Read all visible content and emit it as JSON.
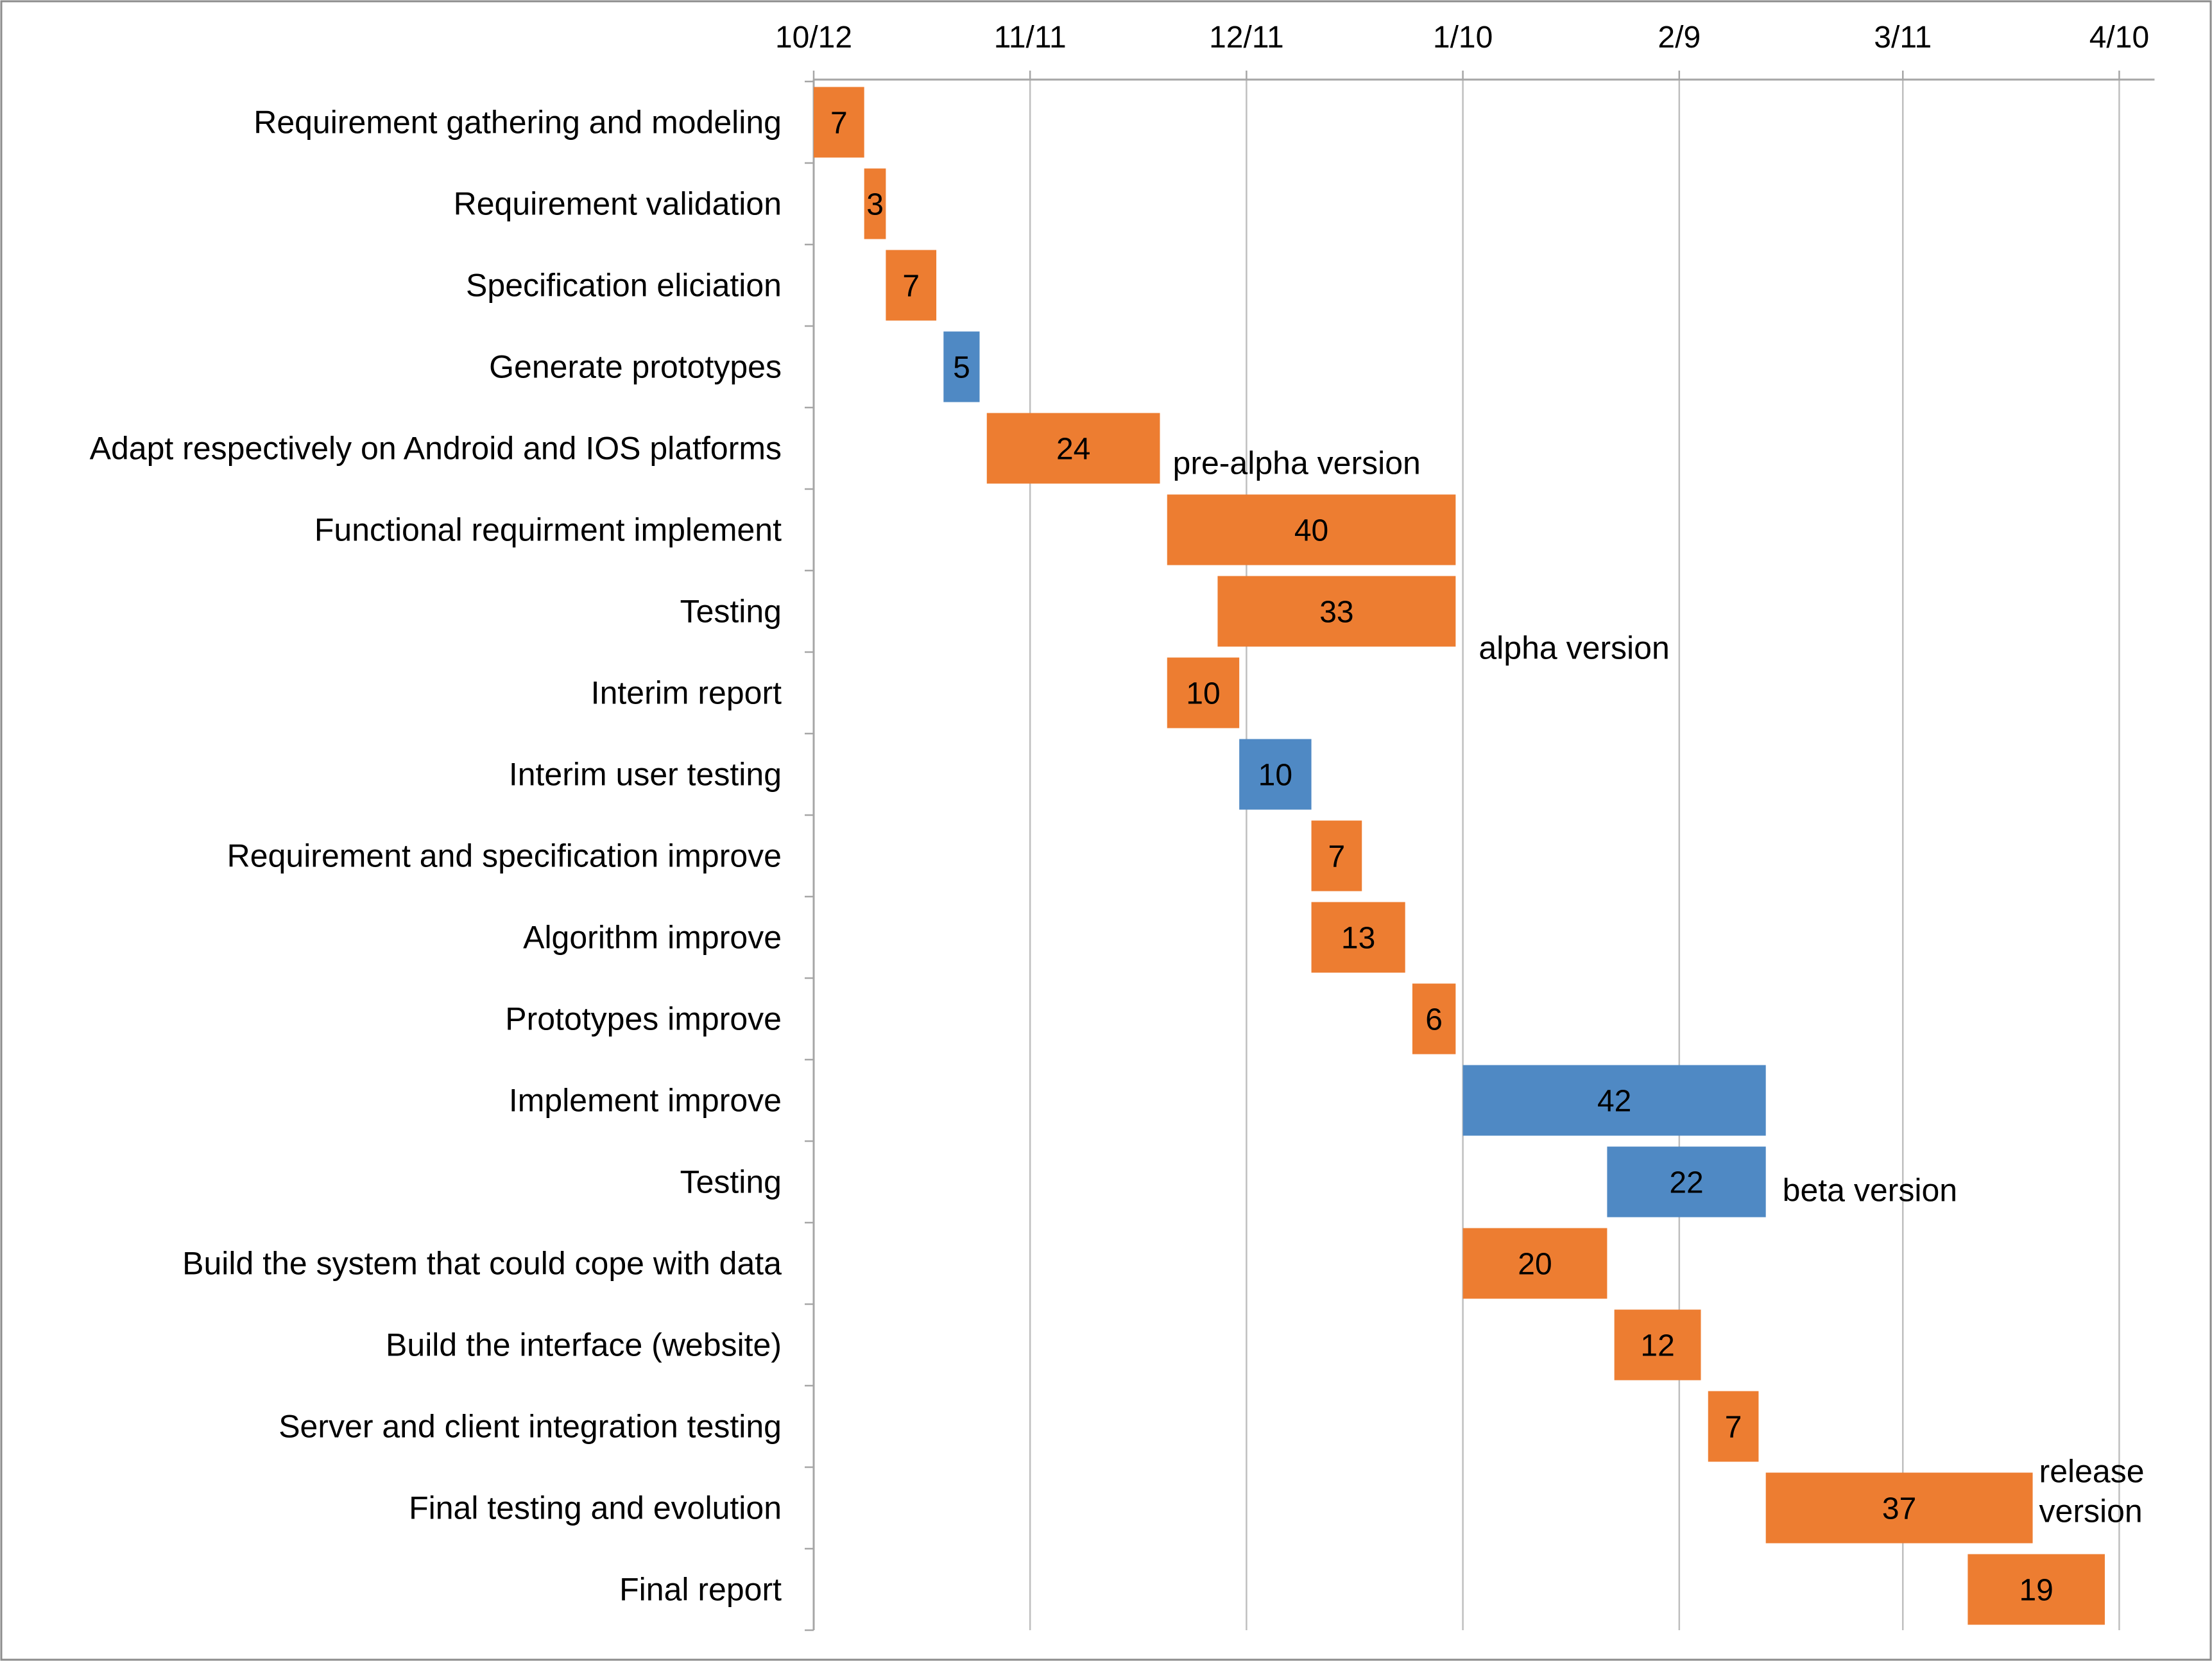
{
  "chart_data": {
    "type": "bar",
    "subtype": "gantt",
    "title": "",
    "xlabel": "",
    "ylabel": "",
    "x_axis": {
      "ticks": [
        "10/12",
        "11/11",
        "12/11",
        "1/10",
        "2/9",
        "3/11",
        "4/10"
      ],
      "range": [
        "10/12",
        "4/15"
      ],
      "position": "top",
      "gridlines": true
    },
    "colors": {
      "orange": "#ED7D31",
      "blue": "#4F89C4",
      "grid": "#BFBFBF",
      "axis": "#A6A6A6",
      "text": "#000000",
      "frame": "#8C8C8C"
    },
    "tasks": [
      {
        "name": "Requirement gathering and modeling",
        "start": "10/12",
        "duration": 7,
        "color": "orange"
      },
      {
        "name": "Requirement validation",
        "start": "10/19",
        "duration": 3,
        "color": "orange"
      },
      {
        "name": "Specification eliciation",
        "start": "10/22",
        "duration": 7,
        "color": "orange"
      },
      {
        "name": "Generate prototypes",
        "start": "10/30",
        "duration": 5,
        "color": "blue"
      },
      {
        "name": "Adapt respectively on Android and IOS platforms",
        "start": "11/5",
        "duration": 24,
        "color": "orange"
      },
      {
        "name": "Functional requirment implement",
        "start": "11/30",
        "duration": 40,
        "color": "orange"
      },
      {
        "name": "Testing",
        "start": "12/7",
        "duration": 33,
        "color": "orange"
      },
      {
        "name": "Interim report",
        "start": "11/30",
        "duration": 10,
        "color": "orange"
      },
      {
        "name": "Interim user testing",
        "start": "12/10",
        "duration": 10,
        "color": "blue"
      },
      {
        "name": "Requirement and specification improve",
        "start": "12/20",
        "duration": 7,
        "color": "orange"
      },
      {
        "name": "Algorithm improve",
        "start": "12/20",
        "duration": 13,
        "color": "orange"
      },
      {
        "name": "Prototypes improve",
        "start": "1/3",
        "duration": 6,
        "color": "orange"
      },
      {
        "name": "Implement improve",
        "start": "1/10",
        "duration": 42,
        "color": "blue"
      },
      {
        "name": "Testing",
        "start": "1/30",
        "duration": 22,
        "color": "blue"
      },
      {
        "name": "Build the system that could cope with data",
        "start": "1/10",
        "duration": 20,
        "color": "orange"
      },
      {
        "name": "Build the interface (website)",
        "start": "1/31",
        "duration": 12,
        "color": "orange"
      },
      {
        "name": "Server and client integration testing",
        "start": "2/13",
        "duration": 7,
        "color": "orange"
      },
      {
        "name": "Final testing and evolution",
        "start": "2/21",
        "duration": 37,
        "color": "orange"
      },
      {
        "name": "Final report",
        "start": "3/20",
        "duration": 19,
        "color": "orange"
      }
    ],
    "annotations": [
      {
        "lines": [
          "pre-alpha version"
        ],
        "task_index": 4
      },
      {
        "lines": [
          "alpha version"
        ],
        "task_index": 6
      },
      {
        "lines": [
          "beta version"
        ],
        "task_index": 13
      },
      {
        "lines": [
          "release",
          "version"
        ],
        "task_index": 17
      }
    ]
  }
}
